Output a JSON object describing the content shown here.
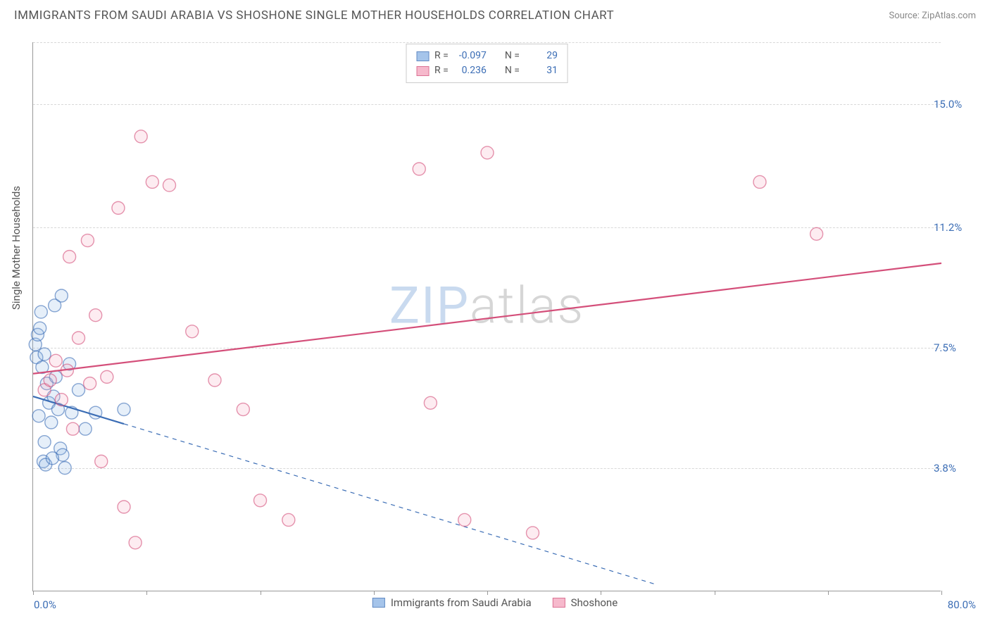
{
  "header": {
    "title": "IMMIGRANTS FROM SAUDI ARABIA VS SHOSHONE SINGLE MOTHER HOUSEHOLDS CORRELATION CHART",
    "source_prefix": "Source: ",
    "source_name": "ZipAtlas.com"
  },
  "ylabel": "Single Mother Households",
  "watermark": {
    "zip": "ZIP",
    "atlas": "atlas"
  },
  "chart": {
    "type": "scatter",
    "xlim": [
      0,
      80
    ],
    "ylim": [
      0,
      16.9
    ],
    "x_tick_positions": [
      0,
      10,
      20,
      30,
      40,
      50,
      60,
      70,
      80
    ],
    "x_min_label": "0.0%",
    "x_max_label": "80.0%",
    "y_gridlines": [
      3.8,
      7.5,
      11.2,
      15.0
    ],
    "y_tick_labels": [
      "3.8%",
      "7.5%",
      "11.2%",
      "15.0%"
    ],
    "background_color": "#ffffff",
    "grid_color": "#d8d8d8",
    "marker_radius": 9,
    "marker_fill_opacity": 0.22,
    "marker_stroke_width": 1.4,
    "line_width": 2.2,
    "series": [
      {
        "name": "Immigrants from Saudi Arabia",
        "color_stroke": "#3b6db5",
        "color_fill": "#8fb6e5",
        "r_value": "-0.097",
        "n_value": "29",
        "points": [
          [
            0.2,
            7.6
          ],
          [
            0.3,
            7.2
          ],
          [
            0.4,
            7.9
          ],
          [
            0.6,
            8.1
          ],
          [
            0.8,
            6.9
          ],
          [
            1.0,
            7.3
          ],
          [
            1.2,
            6.4
          ],
          [
            1.4,
            5.8
          ],
          [
            0.5,
            5.4
          ],
          [
            1.6,
            5.2
          ],
          [
            1.8,
            6.0
          ],
          [
            2.0,
            6.6
          ],
          [
            2.2,
            5.6
          ],
          [
            1.0,
            4.6
          ],
          [
            2.4,
            4.4
          ],
          [
            2.6,
            4.2
          ],
          [
            0.9,
            4.0
          ],
          [
            2.8,
            3.8
          ],
          [
            1.1,
            3.9
          ],
          [
            1.7,
            4.1
          ],
          [
            0.7,
            8.6
          ],
          [
            1.9,
            8.8
          ],
          [
            2.5,
            9.1
          ],
          [
            3.4,
            5.5
          ],
          [
            3.2,
            7.0
          ],
          [
            4.0,
            6.2
          ],
          [
            4.6,
            5.0
          ],
          [
            5.5,
            5.5
          ],
          [
            8.0,
            5.6
          ]
        ],
        "trend": {
          "x1": 0,
          "y1": 6.0,
          "x2": 8,
          "y2": 5.1,
          "solid_until_x": 8,
          "dash_to_x": 55,
          "dash_to_y": 0.2
        }
      },
      {
        "name": "Shoshone",
        "color_stroke": "#d44f7a",
        "color_fill": "#f5a8c0",
        "r_value": "0.236",
        "n_value": "31",
        "points": [
          [
            1.0,
            6.2
          ],
          [
            1.5,
            6.5
          ],
          [
            2.0,
            7.1
          ],
          [
            2.5,
            5.9
          ],
          [
            3.0,
            6.8
          ],
          [
            3.5,
            5.0
          ],
          [
            4.0,
            7.8
          ],
          [
            5.0,
            6.4
          ],
          [
            5.5,
            8.5
          ],
          [
            6.0,
            4.0
          ],
          [
            6.5,
            6.6
          ],
          [
            7.5,
            11.8
          ],
          [
            8.0,
            2.6
          ],
          [
            9.0,
            1.5
          ],
          [
            9.5,
            14.0
          ],
          [
            10.5,
            12.6
          ],
          [
            12.0,
            12.5
          ],
          [
            14.0,
            8.0
          ],
          [
            16.0,
            6.5
          ],
          [
            18.5,
            5.6
          ],
          [
            20.0,
            2.8
          ],
          [
            22.5,
            2.2
          ],
          [
            34.0,
            13.0
          ],
          [
            35.0,
            5.8
          ],
          [
            38.0,
            2.2
          ],
          [
            40.0,
            13.5
          ],
          [
            44.0,
            1.8
          ],
          [
            64.0,
            12.6
          ],
          [
            69.0,
            11.0
          ],
          [
            3.2,
            10.3
          ],
          [
            4.8,
            10.8
          ]
        ],
        "trend": {
          "x1": 0,
          "y1": 6.7,
          "x2": 80,
          "y2": 10.1
        }
      }
    ]
  },
  "legend_top": {
    "r_label": "R =",
    "n_label": "N ="
  }
}
